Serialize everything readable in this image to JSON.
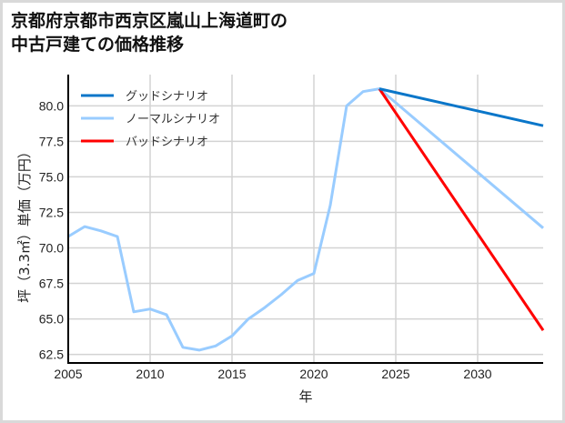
{
  "title": "京都府京都市西京区嵐山上海道町の\n中古戸建ての価格推移",
  "chart_data": {
    "type": "line",
    "title": "京都府京都市西京区嵐山上海道町の中古戸建ての価格推移",
    "xlabel": "年",
    "ylabel": "坪（3.3㎡）単価（万円）",
    "xlim": [
      2005,
      2034
    ],
    "ylim": [
      61.9,
      82.2
    ],
    "xticks": [
      2005,
      2010,
      2015,
      2020,
      2025,
      2030
    ],
    "yticks": [
      62.5,
      65.0,
      67.5,
      70.0,
      72.5,
      75.0,
      77.5,
      80.0
    ],
    "ytick_labels": [
      "62.5",
      "65.0",
      "67.5",
      "70.0",
      "72.5",
      "75.0",
      "77.5",
      "80.0"
    ],
    "grid": true,
    "legend_position": "upper left",
    "series": [
      {
        "name": "グッドシナリオ",
        "color": "#0a76c9",
        "x": [
          2024,
          2034
        ],
        "values": [
          81.2,
          78.6
        ]
      },
      {
        "name": "ノーマルシナリオ",
        "color": "#99ccff",
        "x": [
          2005,
          2006,
          2007,
          2008,
          2009,
          2010,
          2011,
          2012,
          2013,
          2014,
          2015,
          2016,
          2017,
          2018,
          2019,
          2020,
          2021,
          2022,
          2023,
          2024,
          2034
        ],
        "values": [
          70.8,
          71.5,
          71.2,
          70.8,
          65.5,
          65.7,
          65.3,
          63.0,
          62.8,
          63.1,
          63.8,
          65.0,
          65.8,
          66.7,
          67.7,
          68.2,
          73.0,
          80.0,
          81.0,
          81.2,
          71.4
        ]
      },
      {
        "name": "バッドシナリオ",
        "color": "#ff0000",
        "x": [
          2024,
          2034
        ],
        "values": [
          81.2,
          64.2
        ]
      }
    ]
  }
}
